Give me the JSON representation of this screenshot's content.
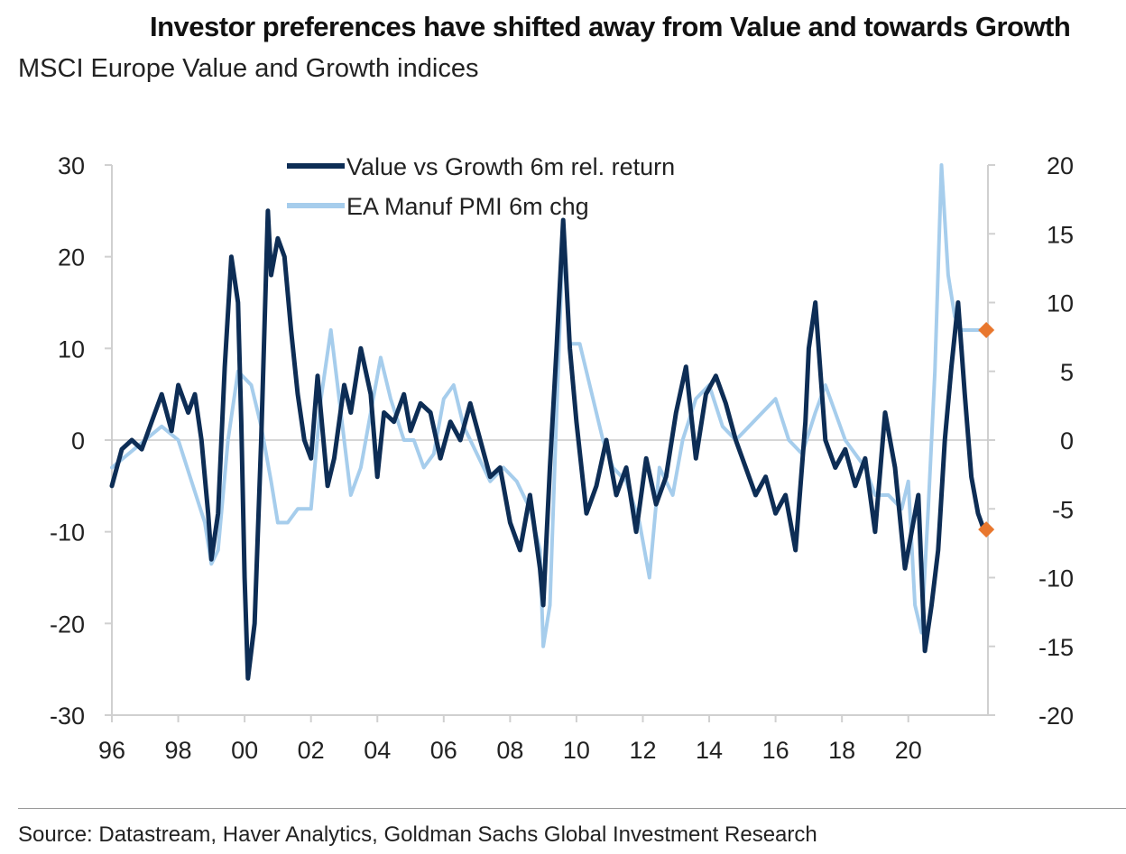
{
  "header": {
    "title": "Investor preferences have shifted away from Value and towards Growth",
    "subtitle": "MSCI Europe Value and Growth indices"
  },
  "footer": {
    "source": "Source: Datastream, Haver Analytics, Goldman Sachs Global Investment Research"
  },
  "colors": {
    "value_vs_growth": "#0d2d55",
    "pmi": "#a6cdec",
    "marker": "#e8772e",
    "axis": "#d0d0d0",
    "zero_line": "#c8c8c8"
  },
  "chart_data": {
    "type": "line",
    "title": "Investor preferences have shifted away from Value and towards Growth",
    "subtitle": "MSCI Europe Value and Growth indices",
    "legend_position": "top-center",
    "grid": false,
    "x_ticks": [
      "96",
      "98",
      "00",
      "02",
      "04",
      "06",
      "08",
      "10",
      "12",
      "14",
      "16",
      "18",
      "20"
    ],
    "x_range": [
      1996,
      2022.4
    ],
    "y_left": {
      "range": [
        -30,
        30
      ],
      "ticks": [
        30,
        20,
        10,
        0,
        -10,
        -20,
        -30
      ]
    },
    "y_right": {
      "range": [
        -20,
        20
      ],
      "ticks": [
        20,
        15,
        10,
        5,
        0,
        -5,
        -10,
        -15,
        -20
      ]
    },
    "series": [
      {
        "name": "Value vs Growth 6m rel. return",
        "axis": "left",
        "x": [
          1996.0,
          1996.3,
          1996.6,
          1996.9,
          1997.2,
          1997.5,
          1997.8,
          1998.0,
          1998.3,
          1998.5,
          1998.7,
          1998.9,
          1999.0,
          1999.2,
          1999.4,
          1999.6,
          1999.8,
          1999.9,
          2000.0,
          2000.1,
          2000.3,
          2000.5,
          2000.7,
          2000.8,
          2001.0,
          2001.2,
          2001.4,
          2001.6,
          2001.8,
          2002.0,
          2002.2,
          2002.5,
          2002.7,
          2003.0,
          2003.2,
          2003.5,
          2003.8,
          2004.0,
          2004.2,
          2004.5,
          2004.8,
          2005.0,
          2005.3,
          2005.6,
          2005.9,
          2006.2,
          2006.5,
          2006.8,
          2007.1,
          2007.4,
          2007.7,
          2008.0,
          2008.3,
          2008.6,
          2008.9,
          2009.0,
          2009.2,
          2009.4,
          2009.6,
          2009.8,
          2010.0,
          2010.3,
          2010.6,
          2010.9,
          2011.2,
          2011.5,
          2011.8,
          2012.1,
          2012.4,
          2012.7,
          2013.0,
          2013.3,
          2013.6,
          2013.9,
          2014.2,
          2014.5,
          2014.8,
          2015.1,
          2015.4,
          2015.7,
          2016.0,
          2016.3,
          2016.6,
          2016.9,
          2017.0,
          2017.2,
          2017.5,
          2017.8,
          2018.1,
          2018.4,
          2018.7,
          2019.0,
          2019.3,
          2019.6,
          2019.9,
          2020.1,
          2020.3,
          2020.5,
          2020.7,
          2020.9,
          2021.1,
          2021.3,
          2021.5,
          2021.7,
          2021.9,
          2022.1,
          2022.3
        ],
        "values": [
          -5,
          -1,
          0,
          -1,
          2,
          5,
          1,
          6,
          3,
          5,
          0,
          -8,
          -13,
          -8,
          8,
          20,
          15,
          2,
          -15,
          -26,
          -20,
          0,
          25,
          18,
          22,
          20,
          12,
          5,
          0,
          -2,
          7,
          -5,
          -2,
          6,
          3,
          10,
          5,
          -4,
          3,
          2,
          5,
          1,
          4,
          3,
          -2,
          2,
          0,
          4,
          0,
          -4,
          -3,
          -9,
          -12,
          -6,
          -14,
          -18,
          -3,
          10,
          24,
          10,
          2,
          -8,
          -5,
          0,
          -6,
          -3,
          -10,
          -2,
          -7,
          -4,
          3,
          8,
          -2,
          5,
          7,
          4,
          0,
          -3,
          -6,
          -4,
          -8,
          -6,
          -12,
          2,
          10,
          15,
          0,
          -3,
          -1,
          -5,
          -2,
          -10,
          3,
          -3,
          -14,
          -10,
          -6,
          -23,
          -18,
          -12,
          0,
          8,
          15,
          5,
          -4,
          -8,
          -10
        ]
      },
      {
        "name": "EA Manuf PMI 6m chg",
        "axis": "right",
        "x": [
          1996.0,
          1996.5,
          1997.0,
          1997.5,
          1998.0,
          1998.4,
          1998.8,
          1999.0,
          1999.2,
          1999.5,
          1999.8,
          2000.2,
          2000.5,
          2000.8,
          2001.0,
          2001.3,
          2001.6,
          2002.0,
          2002.3,
          2002.6,
          2002.9,
          2003.2,
          2003.5,
          2003.8,
          2004.1,
          2004.4,
          2004.8,
          2005.1,
          2005.4,
          2005.7,
          2006.0,
          2006.3,
          2006.6,
          2007.0,
          2007.4,
          2007.8,
          2008.2,
          2008.6,
          2008.9,
          2009.0,
          2009.2,
          2009.4,
          2009.6,
          2009.8,
          2010.1,
          2010.5,
          2010.8,
          2011.1,
          2011.5,
          2011.9,
          2012.2,
          2012.5,
          2012.9,
          2013.2,
          2013.6,
          2014.0,
          2014.4,
          2014.8,
          2015.2,
          2015.6,
          2016.0,
          2016.4,
          2016.8,
          2017.2,
          2017.5,
          2017.8,
          2018.1,
          2018.4,
          2018.7,
          2019.0,
          2019.4,
          2019.8,
          2020.0,
          2020.2,
          2020.4,
          2020.6,
          2020.8,
          2021.0,
          2021.2,
          2021.4,
          2021.6,
          2021.8,
          2022.0,
          2022.2
        ],
        "values": [
          -2,
          -1,
          0,
          1,
          0,
          -3,
          -6,
          -9,
          -8,
          0,
          5,
          4,
          1,
          -3,
          -6,
          -6,
          -5,
          -5,
          3,
          8,
          2,
          -4,
          -2,
          2,
          6,
          3,
          0,
          0,
          -2,
          -1,
          3,
          4,
          1,
          -1,
          -3,
          -2,
          -3,
          -5,
          -8,
          -15,
          -12,
          2,
          15,
          7,
          7,
          3,
          0,
          -2,
          -3,
          -6,
          -10,
          -2,
          -4,
          0,
          3,
          4,
          1,
          0,
          1,
          2,
          3,
          0,
          -1,
          2,
          4,
          2,
          0,
          -1,
          -2,
          -4,
          -4,
          -5,
          -3,
          -12,
          -14,
          -5,
          5,
          20,
          12,
          9,
          8,
          8,
          8,
          8
        ]
      }
    ],
    "markers": [
      {
        "series": "Value vs Growth 6m rel. return",
        "axis": "right",
        "x": 2022.35,
        "y": -6.5
      },
      {
        "series": "EA Manuf PMI 6m chg",
        "axis": "right",
        "x": 2022.35,
        "y": 8
      }
    ]
  }
}
